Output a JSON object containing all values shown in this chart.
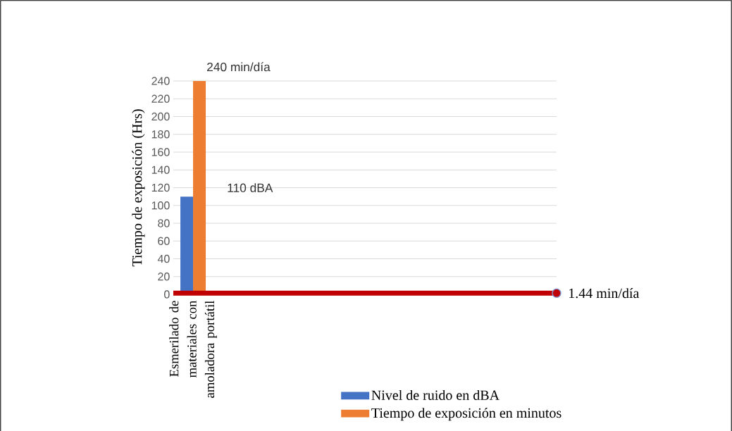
{
  "chart_data": {
    "type": "bar",
    "ylabel": "Tiempo de exposición (Hrs)",
    "categories": [
      "Esmerilado de materiales con amoladora portátil"
    ],
    "series": [
      {
        "name": "Nivel de ruido en dBA",
        "color": "#4472c4",
        "values": [
          110
        ]
      },
      {
        "name": "Tiempo de exposición en minutos",
        "color": "#ed7d31",
        "values": [
          240
        ]
      }
    ],
    "ylim": [
      0,
      240
    ],
    "yticks": [
      0,
      20,
      40,
      60,
      80,
      100,
      120,
      140,
      160,
      180,
      200,
      220,
      240
    ],
    "grid": "y",
    "legend": "bottom",
    "annotations": [
      "240 min/día",
      "110 dBA"
    ],
    "ref_lines": [
      {
        "axis": "y",
        "value": 1.44,
        "label": "1.44 min/día",
        "color": "#c00000"
      }
    ]
  }
}
